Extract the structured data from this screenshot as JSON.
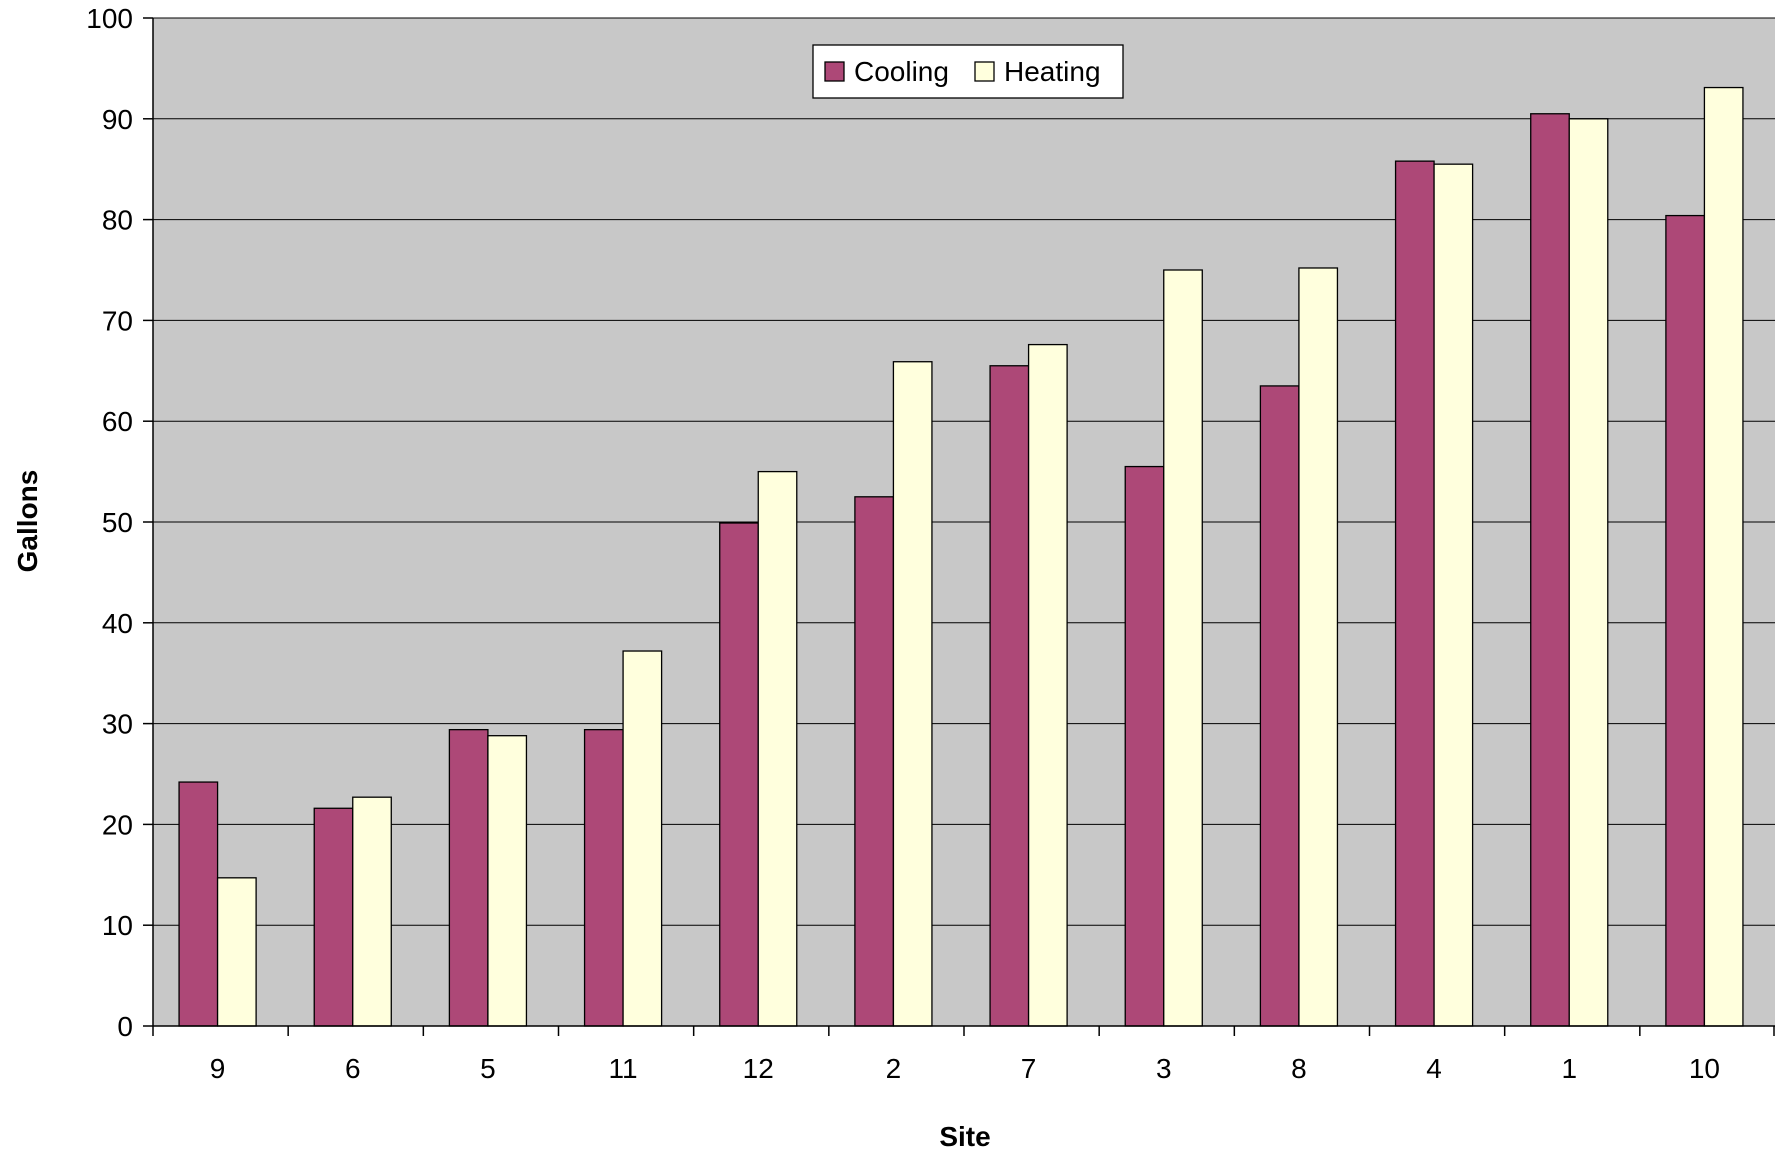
{
  "chart_data": {
    "type": "bar",
    "title": "",
    "xlabel": "Site",
    "ylabel": "Gallons",
    "categories": [
      "9",
      "6",
      "5",
      "11",
      "12",
      "2",
      "7",
      "3",
      "8",
      "4",
      "1",
      "10"
    ],
    "series": [
      {
        "name": "Cooling",
        "color": "#ad4877",
        "values": [
          24.2,
          21.6,
          29.4,
          29.4,
          49.9,
          52.5,
          65.5,
          55.5,
          63.5,
          85.8,
          90.5,
          80.4
        ]
      },
      {
        "name": "Heating",
        "color": "#ffffdd",
        "values": [
          14.7,
          22.7,
          28.8,
          37.2,
          55.0,
          65.9,
          67.6,
          75.0,
          75.2,
          85.5,
          90.0,
          93.1
        ]
      }
    ],
    "ylim": [
      0,
      100
    ],
    "yticks": [
      "0",
      "10",
      "20",
      "30",
      "40",
      "50",
      "60",
      "70",
      "80",
      "90",
      "100"
    ],
    "grid": true,
    "legend_position": "top-center",
    "plot_background": "#c8c8c8"
  }
}
